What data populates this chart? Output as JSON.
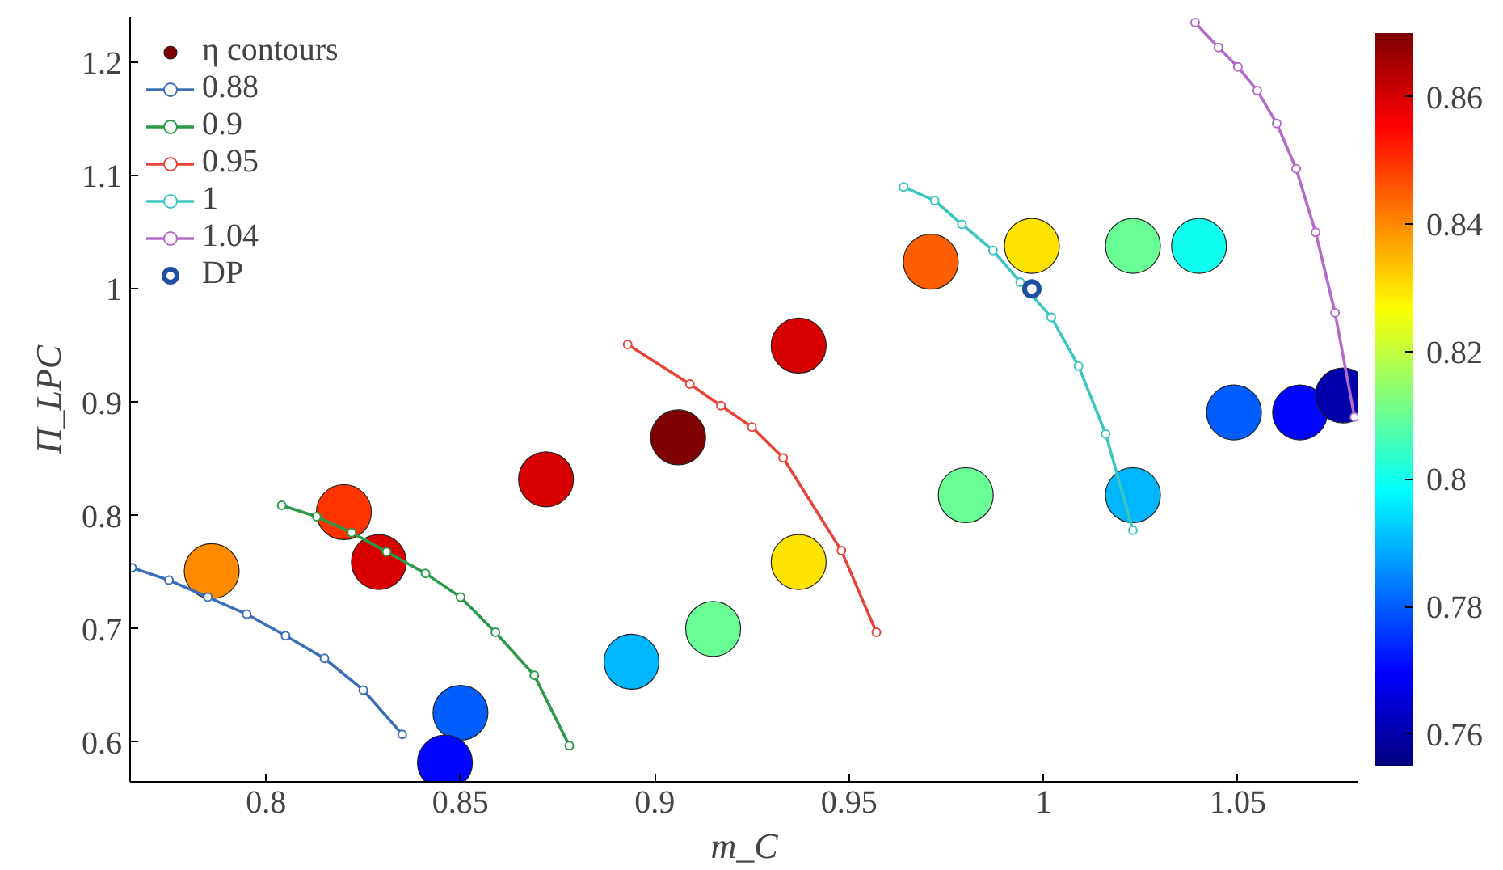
{
  "chart_data": {
    "type": "line",
    "xlabel": "m_C",
    "ylabel": "Π_LPC",
    "xlim": [
      0.765,
      1.081
    ],
    "ylim": [
      0.565,
      1.24
    ],
    "xticks": [
      0.8,
      0.85,
      0.9,
      0.95,
      1,
      1.05
    ],
    "yticks": [
      0.6,
      0.7,
      0.8,
      0.9,
      1,
      1.1,
      1.2
    ],
    "clim": [
      0.755,
      0.87
    ],
    "cticks": [
      0.76,
      0.78,
      0.8,
      0.82,
      0.84,
      0.86
    ],
    "grid": false,
    "legend": "top left",
    "marker": "circle",
    "series": [
      {
        "name": "η contours",
        "type": "scatter",
        "x": [
          0.906,
          0.872,
          0.829,
          0.937,
          0.971,
          0.997,
          1.023,
          1.04,
          1.049,
          1.066,
          1.077,
          1.023,
          0.98,
          0.937,
          0.915,
          0.894,
          0.85,
          0.846,
          0.786,
          0.82
        ],
        "values": [
          0.869,
          0.832,
          0.759,
          0.95,
          1.024,
          1.038,
          1.038,
          1.038,
          0.891,
          0.891,
          0.906,
          0.818,
          0.818,
          0.759,
          0.7,
          0.671,
          0.626,
          0.582,
          0.751,
          0.803
        ],
        "colors": [
          "#7f0000",
          "#d80000",
          "#d80000",
          "#d80000",
          "#ff5e00",
          "#ffe300",
          "#69ff95",
          "#10ffee",
          "#005eff",
          "#0005ff",
          "#0000ab",
          "#00b6ff",
          "#69ff95",
          "#ffe300",
          "#69ff95",
          "#00b6ff",
          "#005eff",
          "#0005ff",
          "#ff8a00",
          "#ff3200"
        ]
      },
      {
        "name": "0.88",
        "color": "#3d6fb6",
        "x": [
          0.7655,
          0.775,
          0.785,
          0.795,
          0.805,
          0.815,
          0.825,
          0.835
        ],
        "values": [
          0.754,
          0.743,
          0.728,
          0.713,
          0.694,
          0.674,
          0.646,
          0.607
        ]
      },
      {
        "name": "0.9",
        "color": "#2a9a4a",
        "x": [
          0.804,
          0.813,
          0.822,
          0.831,
          0.841,
          0.85,
          0.859,
          0.869,
          0.878
        ],
        "values": [
          0.809,
          0.799,
          0.785,
          0.768,
          0.749,
          0.728,
          0.697,
          0.659,
          0.597
        ]
      },
      {
        "name": "0.95",
        "color": "#e8443a",
        "x": [
          0.893,
          0.909,
          0.917,
          0.925,
          0.933,
          0.948,
          0.957
        ],
        "values": [
          0.951,
          0.916,
          0.897,
          0.878,
          0.851,
          0.769,
          0.697
        ]
      },
      {
        "name": "1",
        "color": "#3cc6c0",
        "x": [
          0.964,
          0.972,
          0.979,
          0.987,
          0.994,
          1.002,
          1.009,
          1.016,
          1.023
        ],
        "values": [
          1.09,
          1.078,
          1.057,
          1.034,
          1.006,
          0.975,
          0.932,
          0.872,
          0.787
        ]
      },
      {
        "name": "1.04",
        "color": "#b46ac8",
        "x": [
          1.039,
          1.045,
          1.05,
          1.055,
          1.06,
          1.065,
          1.07,
          1.075,
          1.08
        ],
        "values": [
          1.235,
          1.213,
          1.196,
          1.175,
          1.146,
          1.106,
          1.05,
          0.979,
          0.887
        ]
      },
      {
        "name": "DP",
        "type": "scatter",
        "color": "#1f4fa0",
        "x": [
          0.997
        ],
        "values": [
          1.0
        ]
      }
    ]
  }
}
